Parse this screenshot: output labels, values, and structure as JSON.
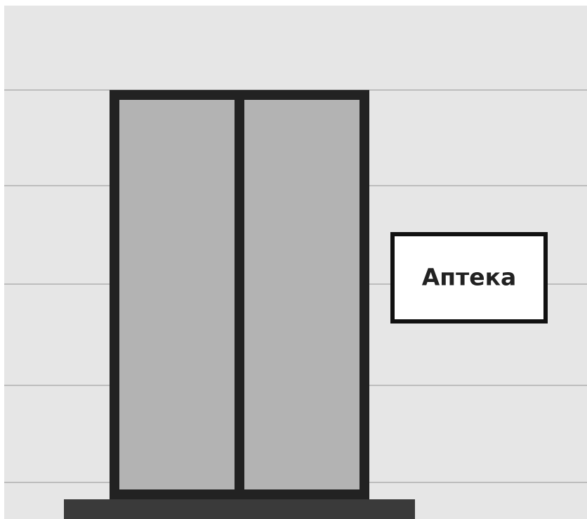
{
  "sign": {
    "text": "Аптека"
  }
}
